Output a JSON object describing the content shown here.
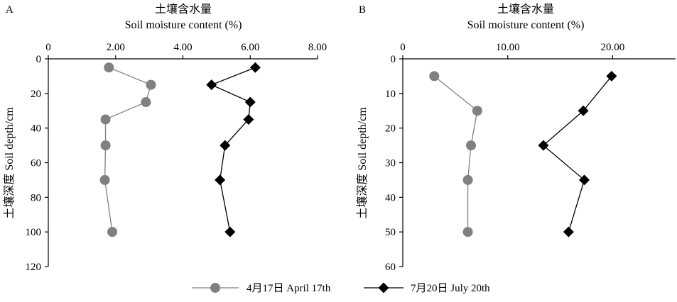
{
  "chart_data": {
    "panels": [
      {
        "type": "line",
        "panel_label": "A",
        "title_cn": "土壤含水量",
        "title_en": "Soil moisture content (%)",
        "ylabel": "土壤深度 Soil depth/cm",
        "x_range": [
          0,
          8
        ],
        "x_ticks": [
          0,
          2,
          4,
          6,
          8
        ],
        "x_tick_labels": [
          "0",
          "2.00",
          "4.00",
          "6.00",
          "8.00"
        ],
        "y_range": [
          0,
          120
        ],
        "y_ticks": [
          0,
          20,
          40,
          60,
          80,
          100,
          120
        ],
        "y_tick_labels": [
          "0",
          "20",
          "40",
          "60",
          "80",
          "100",
          "120"
        ],
        "series": [
          {
            "name": "4月17日 April 17th",
            "marker": "circle",
            "color": "#808080",
            "points": [
              [
                1.8,
                5
              ],
              [
                3.05,
                15
              ],
              [
                2.9,
                25
              ],
              [
                1.7,
                35
              ],
              [
                1.7,
                50
              ],
              [
                1.68,
                70
              ],
              [
                1.9,
                100
              ]
            ]
          },
          {
            "name": "7月20日 July 20th",
            "marker": "diamond",
            "color": "#000000",
            "points": [
              [
                6.15,
                5
              ],
              [
                4.85,
                15
              ],
              [
                6.0,
                25
              ],
              [
                5.95,
                35
              ],
              [
                5.25,
                50
              ],
              [
                5.1,
                70
              ],
              [
                5.4,
                100
              ]
            ]
          }
        ]
      },
      {
        "type": "line",
        "panel_label": "B",
        "title_cn": "土壤含水量",
        "title_en": "Soil moisture content (%)",
        "ylabel": "土壤深度 Soil depth/cm",
        "x_range": [
          0,
          26
        ],
        "x_ticks": [
          0,
          10,
          20
        ],
        "x_tick_labels": [
          "0",
          "10.00",
          "20.00"
        ],
        "y_range": [
          0,
          60
        ],
        "y_ticks": [
          0,
          10,
          20,
          30,
          40,
          50,
          60
        ],
        "y_tick_labels": [
          "0",
          "10",
          "20",
          "30",
          "40",
          "50",
          "60"
        ],
        "series": [
          {
            "name": "4月17日 April 17th",
            "marker": "circle",
            "color": "#808080",
            "points": [
              [
                3.0,
                5
              ],
              [
                7.1,
                15
              ],
              [
                6.5,
                25
              ],
              [
                6.2,
                35
              ],
              [
                6.2,
                50
              ]
            ]
          },
          {
            "name": "7月20日 July 20th",
            "marker": "diamond",
            "color": "#000000",
            "points": [
              [
                19.9,
                5
              ],
              [
                17.2,
                15
              ],
              [
                13.4,
                25
              ],
              [
                17.3,
                35
              ],
              [
                15.8,
                50
              ]
            ]
          }
        ]
      }
    ],
    "legend": [
      {
        "label": "4月17日 April 17th",
        "marker": "circle",
        "color": "#808080"
      },
      {
        "label": "7月20日 July 20th",
        "marker": "diamond",
        "color": "#000000"
      }
    ],
    "legend_position": "bottom-center"
  }
}
